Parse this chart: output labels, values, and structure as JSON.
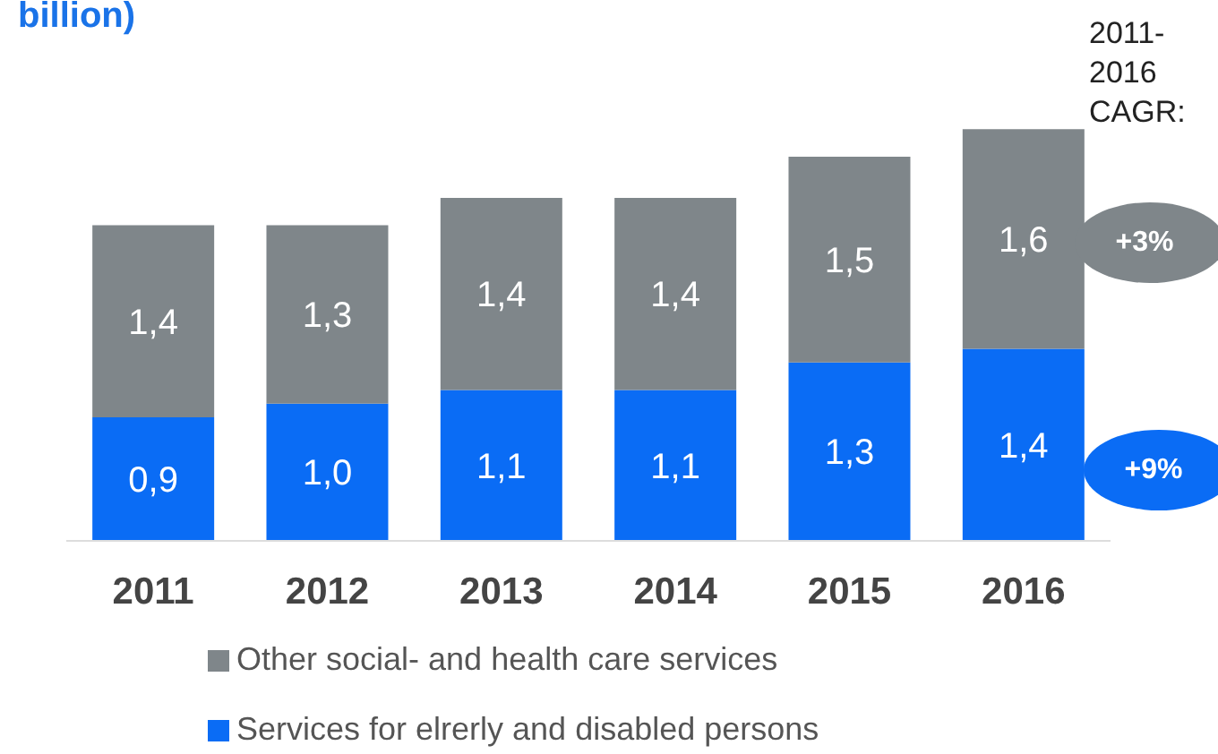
{
  "chart_data": {
    "type": "bar",
    "title": "billion)",
    "stacked": true,
    "categories": [
      "2011",
      "2012",
      "2013",
      "2014",
      "2015",
      "2016"
    ],
    "series": [
      {
        "name": "Services for elrerly and disabled persons",
        "color": "#0a6cf5",
        "values": [
          0.9,
          1.0,
          1.1,
          1.1,
          1.3,
          1.4
        ],
        "value_labels": [
          "0,9",
          "1,0",
          "1,1",
          "1,1",
          "1,3",
          "1,4"
        ]
      },
      {
        "name": "Other social- and health care services",
        "color": "#7f868a",
        "values": [
          1.4,
          1.3,
          1.4,
          1.4,
          1.5,
          1.6
        ],
        "value_labels": [
          "1,4",
          "1,3",
          "1,4",
          "1,4",
          "1,5",
          "1,6"
        ]
      }
    ],
    "annotations": [
      "2011-\n2016\nCAGR:",
      "+3%",
      "+9%"
    ],
    "legend": "bottom",
    "grid": false
  }
}
